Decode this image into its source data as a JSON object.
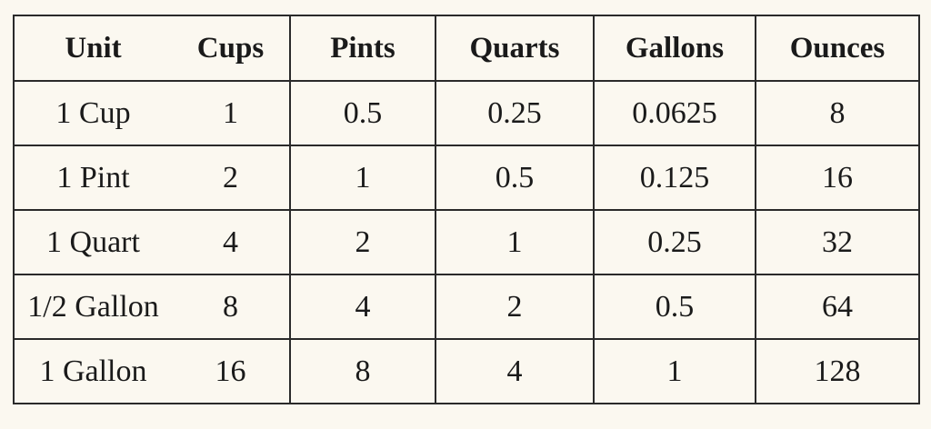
{
  "table": {
    "header": [
      "Unit",
      "Cups",
      "Pints",
      "Quarts",
      "Gallons",
      "Ounces"
    ],
    "rows": [
      [
        "1 Cup",
        "1",
        "0.5",
        "0.25",
        "0.0625",
        "8"
      ],
      [
        "1 Pint",
        "2",
        "1",
        "0.5",
        "0.125",
        "16"
      ],
      [
        "1 Quart",
        "4",
        "2",
        "1",
        "0.25",
        "32"
      ],
      [
        "1/2 Gallon",
        "8",
        "4",
        "2",
        "0.5",
        "64"
      ],
      [
        "1 Gallon",
        "16",
        "8",
        "4",
        "1",
        "128"
      ]
    ]
  }
}
